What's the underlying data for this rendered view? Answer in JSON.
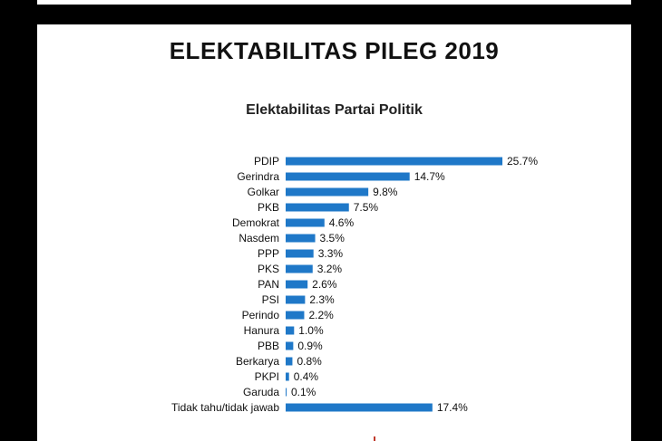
{
  "page": {
    "title": "ELEKTABILITAS PILEG 2019"
  },
  "colors": {
    "bar": "#1f78c8",
    "background": "#000000",
    "slide": "#ffffff"
  },
  "chart_data": {
    "type": "bar",
    "orientation": "horizontal",
    "title": "Elektabilitas Partai Politik",
    "xlabel": "",
    "ylabel": "",
    "grid": false,
    "legend": "none",
    "xlim": [
      0,
      25.7
    ],
    "categories": [
      "PDIP",
      "Gerindra",
      "Golkar",
      "PKB",
      "Demokrat",
      "Nasdem",
      "PPP",
      "PKS",
      "PAN",
      "PSI",
      "Perindo",
      "Hanura",
      "PBB",
      "Berkarya",
      "PKPI",
      "Garuda",
      "Tidak tahu/tidak jawab"
    ],
    "values": [
      25.7,
      14.7,
      9.8,
      7.5,
      4.6,
      3.5,
      3.3,
      3.2,
      2.6,
      2.3,
      2.2,
      1.0,
      0.9,
      0.8,
      0.4,
      0.1,
      17.4
    ],
    "labels": [
      "25.7%",
      "14.7%",
      "9.8%",
      "7.5%",
      "4.6%",
      "3.5%",
      "3.3%",
      "3.2%",
      "2.6%",
      "2.3%",
      "2.2%",
      "1.0%",
      "0.9%",
      "0.8%",
      "0.4%",
      "0.1%",
      "17.4%"
    ]
  }
}
